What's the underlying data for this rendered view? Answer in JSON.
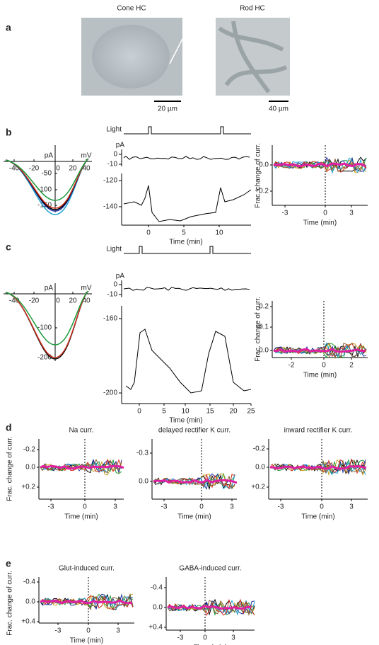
{
  "panels": [
    {
      "label": "a",
      "images": [
        {
          "title": "Cone HC",
          "scale": "20 µm"
        },
        {
          "title": "Rod HC",
          "scale": "40 µm"
        }
      ]
    },
    {
      "label": "b",
      "iv": {
        "y_unit": "pA",
        "x_unit": "mV",
        "xticks": [
          "-40",
          "-20",
          "20",
          "40"
        ],
        "origin": "0",
        "yticks": [
          "-50",
          "-100",
          "-150"
        ]
      },
      "time": {
        "stimulus": "Light",
        "y_unit": "pA",
        "yticks_top": [
          "0",
          "-10"
        ],
        "yticks_bottom": [
          "-120",
          "-140"
        ],
        "xticks": [
          "0",
          "5",
          "10"
        ],
        "xlabel": "Time (min)"
      },
      "frac": {
        "ylabel": "Frac. change of curr.",
        "yticks": [
          "0.0",
          "+0.2"
        ],
        "xticks": [
          "-3",
          "0",
          "3"
        ],
        "xlabel": "Time (min)"
      }
    },
    {
      "label": "c",
      "iv": {
        "y_unit": "pA",
        "x_unit": "mV",
        "xticks": [
          "-40",
          "-20",
          "20",
          "40"
        ],
        "origin": "0",
        "yticks": [
          "-100",
          "-200"
        ]
      },
      "time": {
        "stimulus": "Light",
        "y_unit": "pA",
        "yticks_top": [
          "0",
          "-10"
        ],
        "yticks_bottom": [
          "-160",
          "-200"
        ],
        "xticks": [
          "0",
          "5",
          "10",
          "15",
          "20",
          "25"
        ],
        "xlabel": "Time (min)"
      },
      "frac": {
        "ylabel": "Frac. change of curr.",
        "yticks": [
          "-0.2",
          "-0.1",
          "0.0"
        ],
        "xticks": [
          "-2",
          "0",
          "2"
        ],
        "xlabel": "Time (min)"
      }
    },
    {
      "label": "d",
      "ylabel": "Frac. change of curr.",
      "plots": [
        {
          "title": "Na curr.",
          "yticks": [
            "-0.2",
            "0.0",
            "+0.2"
          ],
          "xticks": [
            "-3",
            "0",
            "3"
          ],
          "xlabel": "Time (min)"
        },
        {
          "title": "delayed rectifier K curr.",
          "yticks": [
            "-0.3",
            "0.0"
          ],
          "xticks": [
            "-3",
            "0",
            "3"
          ],
          "xlabel": "Time (min)"
        },
        {
          "title": "inward rectifier K curr.",
          "yticks": [
            "-0.2",
            "0.0",
            "+0.2"
          ],
          "xticks": [
            "-3",
            "0",
            "3"
          ],
          "xlabel": "Time (min)"
        }
      ]
    },
    {
      "label": "e",
      "ylabel": "Frac. change of curr.",
      "plots": [
        {
          "title": "Glut-induced curr.",
          "yticks": [
            "-0.4",
            "0.0",
            "+0.4"
          ],
          "xticks": [
            "-3",
            "0",
            "3"
          ],
          "xlabel": "Time (min)"
        },
        {
          "title": "GABA-induced curr.",
          "yticks": [
            "-0.4",
            "0.0",
            "+0.4"
          ],
          "xticks": [
            "-3",
            "0",
            "3"
          ],
          "xlabel": "Time (min)"
        }
      ]
    }
  ]
}
